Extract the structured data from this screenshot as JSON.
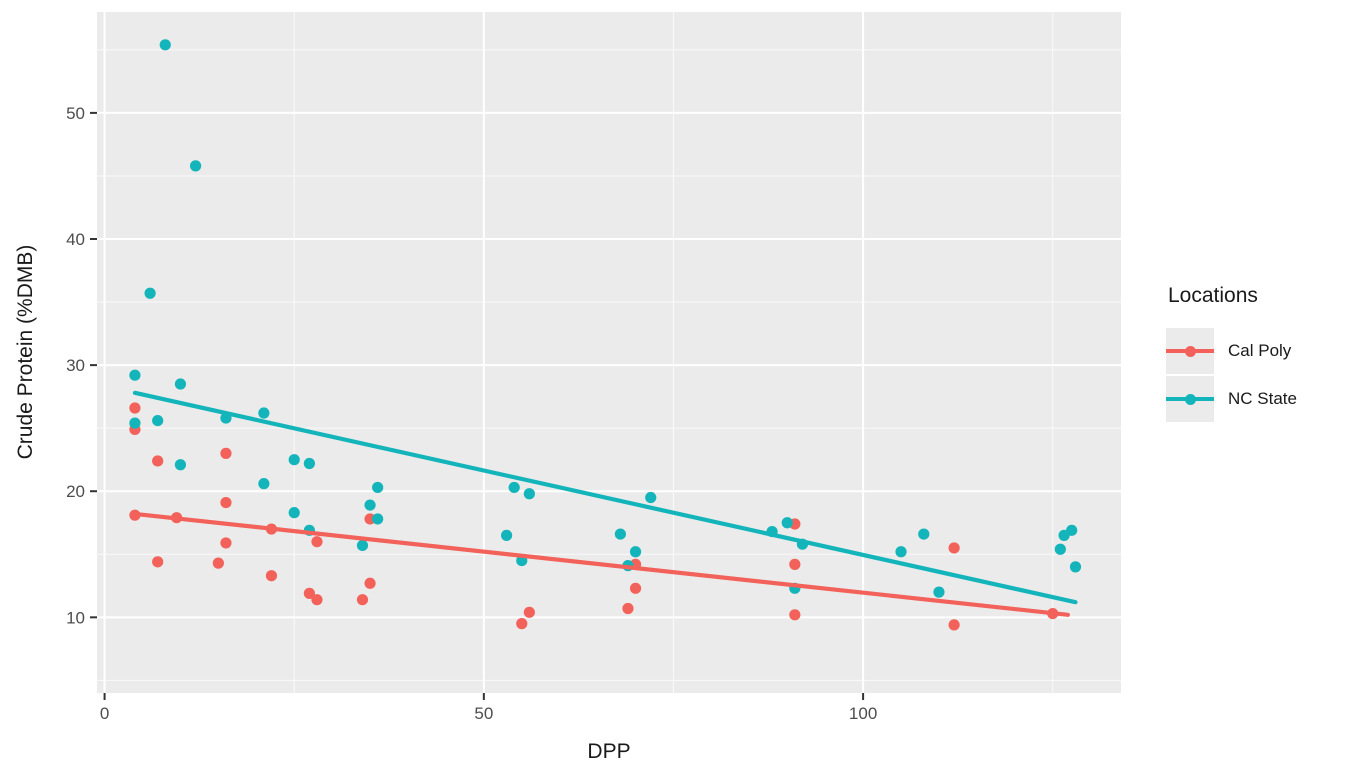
{
  "chart_data": {
    "type": "scatter",
    "xlabel": "DPP",
    "ylabel": "Crude Protein (%DMB)",
    "xlim": [
      -1,
      134
    ],
    "ylim": [
      4,
      58
    ],
    "x_ticks": [
      0,
      50,
      100
    ],
    "y_ticks": [
      10,
      20,
      30,
      40,
      50
    ],
    "x_minor_gridlines": [
      25,
      75,
      125
    ],
    "y_minor_gridlines": [
      5,
      15,
      25,
      35,
      45,
      55
    ],
    "grid": "white major and minor gridlines on gray panel",
    "panel_background": "#EBEBEB",
    "tick_label_color": "#4D4D4D",
    "axis_title_color": "#1A1A1A",
    "legend_title": "Locations",
    "legend_position": "right",
    "series": [
      {
        "name": "Cal Poly",
        "color": "#F2625A",
        "trend_line": [
          [
            4,
            18.2
          ],
          [
            127,
            10.2
          ]
        ],
        "points": [
          [
            4,
            26.6
          ],
          [
            4,
            24.9
          ],
          [
            7,
            22.4
          ],
          [
            4,
            18.1
          ],
          [
            9.5,
            17.9
          ],
          [
            16,
            23.0
          ],
          [
            16,
            19.1
          ],
          [
            16,
            15.9
          ],
          [
            7,
            14.4
          ],
          [
            15,
            14.3
          ],
          [
            22,
            17.0
          ],
          [
            22,
            13.3
          ],
          [
            27,
            11.9
          ],
          [
            28,
            16.0
          ],
          [
            28,
            11.4
          ],
          [
            35,
            17.8
          ],
          [
            35,
            12.7
          ],
          [
            34,
            11.4
          ],
          [
            55,
            9.5
          ],
          [
            56,
            10.4
          ],
          [
            70,
            14.2
          ],
          [
            70,
            12.3
          ],
          [
            69,
            10.7
          ],
          [
            91,
            17.4
          ],
          [
            91,
            14.2
          ],
          [
            91,
            10.2
          ],
          [
            112,
            15.5
          ],
          [
            112,
            9.4
          ],
          [
            125,
            10.3
          ]
        ]
      },
      {
        "name": "NC State",
        "color": "#14B5BA",
        "trend_line": [
          [
            4,
            27.8
          ],
          [
            128,
            11.2
          ]
        ],
        "points": [
          [
            8,
            55.4
          ],
          [
            12,
            45.8
          ],
          [
            6,
            35.7
          ],
          [
            4,
            29.2
          ],
          [
            10,
            28.5
          ],
          [
            4,
            25.4
          ],
          [
            7,
            25.6
          ],
          [
            10,
            22.1
          ],
          [
            16,
            25.8
          ],
          [
            21,
            26.2
          ],
          [
            21,
            20.6
          ],
          [
            25,
            22.5
          ],
          [
            27,
            22.2
          ],
          [
            25,
            18.3
          ],
          [
            27,
            16.9
          ],
          [
            34,
            15.7
          ],
          [
            36,
            20.3
          ],
          [
            35,
            18.9
          ],
          [
            36,
            17.8
          ],
          [
            53,
            16.5
          ],
          [
            54,
            20.3
          ],
          [
            56,
            19.8
          ],
          [
            55,
            14.5
          ],
          [
            68,
            16.6
          ],
          [
            70,
            15.2
          ],
          [
            69,
            14.1
          ],
          [
            72,
            19.5
          ],
          [
            88,
            16.8
          ],
          [
            90,
            17.5
          ],
          [
            92,
            15.8
          ],
          [
            91,
            12.3
          ],
          [
            105,
            15.2
          ],
          [
            108,
            16.6
          ],
          [
            110,
            12.0
          ],
          [
            126,
            15.4
          ],
          [
            126.5,
            16.5
          ],
          [
            127.5,
            16.9
          ],
          [
            128,
            14.0
          ]
        ]
      }
    ]
  }
}
